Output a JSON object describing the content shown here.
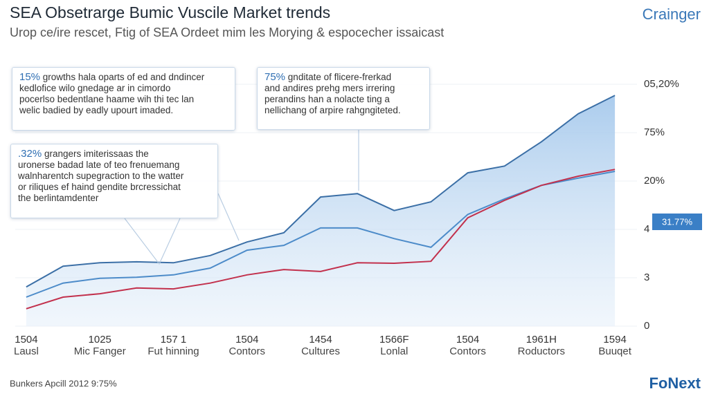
{
  "brand": "Crainger",
  "footer": {
    "note": "Bunkers Apcill 2012 9:75%",
    "logo": "FoNext"
  },
  "chart_data": {
    "type": "line",
    "title": "SEA Obsetrarge Bumic Vuscile Market trends",
    "subtitle": "Urop ce/ire rescet, Ftig of SEA Ordeet mim les Morying & espocecher issaicast",
    "categories": [
      "Lausl",
      "Mic Fanger",
      "Fut hinning",
      "Contors",
      "Cultures",
      "Lonlal",
      "Contors",
      "Roductors",
      "Buuqet"
    ],
    "category_codes": [
      "1504",
      "1025",
      "157 1",
      "1504",
      "1454",
      "1566F",
      "1504",
      "1961H",
      "1594"
    ],
    "x": [
      0,
      0.5,
      1,
      1.5,
      2,
      2.5,
      3,
      3.5,
      4,
      4.5,
      5,
      5.5,
      6,
      6.5,
      7,
      7.5,
      8
    ],
    "xlim": [
      -0.15,
      8.3
    ],
    "ylim": [
      0,
      5
    ],
    "yticks": [
      0,
      {
        "value": 1,
        "label": "3"
      },
      {
        "value": 2,
        "label": "4"
      },
      {
        "value": 3,
        "label": "20%"
      },
      {
        "value": 4,
        "label": "75%"
      },
      {
        "value": 5,
        "label": "05,20%"
      }
    ],
    "series": [
      {
        "color": "#3b6fa6",
        "area": true,
        "values": [
          0.81,
          1.24,
          1.31,
          1.33,
          1.31,
          1.46,
          1.74,
          1.93,
          2.67,
          2.74,
          2.39,
          2.57,
          3.17,
          3.31,
          3.81,
          4.39,
          4.77
        ]
      },
      {
        "color": "#4c8bc9",
        "values": [
          0.6,
          0.89,
          0.99,
          1.01,
          1.06,
          1.2,
          1.57,
          1.67,
          2.03,
          2.03,
          1.81,
          1.63,
          2.31,
          2.63,
          2.91,
          3.06,
          3.2
        ]
      },
      {
        "color": "#c2304c",
        "values": [
          0.36,
          0.6,
          0.67,
          0.79,
          0.77,
          0.89,
          1.06,
          1.17,
          1.13,
          1.31,
          1.3,
          1.34,
          2.24,
          2.6,
          2.91,
          3.1,
          3.24
        ]
      }
    ],
    "callout_label": "31.77%",
    "annotations": [
      {
        "highlight": "15%",
        "lines": [
          "growths hala oparts of ed and dndincer",
          "kedlofice wilo gnedage ar in cimordo",
          "pocerlso bedentlane haame wih thi tec lan",
          "welic badied by eadly upourt imaded."
        ]
      },
      {
        "highlight": "75%",
        "lines": [
          "gnditate of flicere-frerkad",
          "and andires prehg mers irrering",
          "perandins han a nolacte ting a",
          "nellichang of arpire rahgngiteted."
        ]
      },
      {
        "highlight": ".32%",
        "lines": [
          "grangers imiterissaas the",
          "uronerse badad late of teo frenuemang",
          "walnharentch supegraction to the watter",
          "or riliques ef haind gendite brcressichat",
          "the berlintamdenter"
        ]
      }
    ]
  }
}
